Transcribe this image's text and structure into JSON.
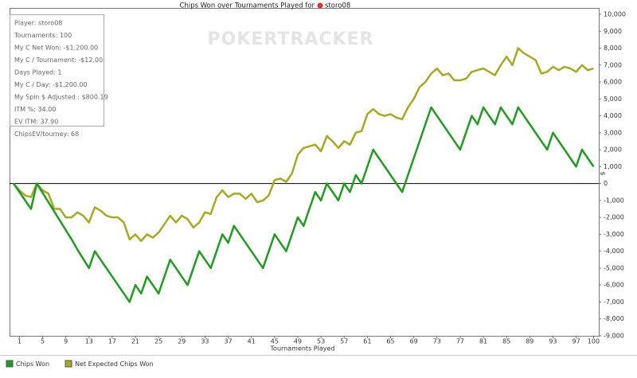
{
  "chart_data": {
    "type": "line",
    "title": "Chips Won over Tournaments Played for",
    "player": "storo08",
    "watermark": "POKERTRACKER",
    "x_label": "Tournaments Played",
    "y_label": "$",
    "info_box": [
      "Player: storo08",
      "Tournaments: 100",
      "My C Net Won: -$1,200.00",
      "My C / Tournament: -$12.00",
      "Days Played: 1",
      "My C / Day: -$1,200.00",
      "My Spin $ Adjusted : $800.19",
      "ITM %: 34.00",
      "EV ITM: 37.90",
      "ChipsEV/tourney: 68"
    ],
    "x": [
      0,
      1,
      2,
      3,
      4,
      5,
      6,
      7,
      8,
      9,
      10,
      11,
      12,
      13,
      14,
      15,
      16,
      17,
      18,
      19,
      20,
      21,
      22,
      23,
      24,
      25,
      26,
      27,
      28,
      29,
      30,
      31,
      32,
      33,
      34,
      35,
      36,
      37,
      38,
      39,
      40,
      41,
      42,
      43,
      44,
      45,
      46,
      47,
      48,
      49,
      50,
      51,
      52,
      53,
      54,
      55,
      56,
      57,
      58,
      59,
      60,
      61,
      62,
      63,
      64,
      65,
      66,
      67,
      68,
      69,
      70,
      71,
      72,
      73,
      74,
      75,
      76,
      77,
      78,
      79,
      80,
      81,
      82,
      83,
      84,
      85,
      86,
      87,
      88,
      89,
      90,
      91,
      92,
      93,
      94,
      95,
      96,
      97,
      98,
      99,
      100
    ],
    "xlim": [
      -0.7,
      100.9
    ],
    "xticks": [
      1,
      5,
      9,
      13,
      17,
      21,
      25,
      29,
      33,
      37,
      41,
      45,
      49,
      53,
      57,
      61,
      65,
      69,
      73,
      77,
      81,
      85,
      89,
      93,
      97,
      100
    ],
    "ylim": [
      -9000,
      10000
    ],
    "yticks": [
      {
        "value": -9000,
        "label": "-9,000"
      },
      {
        "value": -8000,
        "label": "-8,000"
      },
      {
        "value": -7000,
        "label": "-7,000"
      },
      {
        "value": -6000,
        "label": "-6,000"
      },
      {
        "value": -5000,
        "label": "-5,000"
      },
      {
        "value": -4000,
        "label": "-4,000"
      },
      {
        "value": -3000,
        "label": "-3,000"
      },
      {
        "value": -2000,
        "label": "-2,000"
      },
      {
        "value": -1000,
        "label": "-1,000"
      },
      0,
      {
        "value": 1000,
        "label": "1,000"
      },
      {
        "value": 2000,
        "label": "2,000"
      },
      {
        "value": 3000,
        "label": "3,000"
      },
      {
        "value": 4000,
        "label": "4,000"
      },
      {
        "value": 5000,
        "label": "5,000"
      },
      {
        "value": 6000,
        "label": "6,000"
      },
      {
        "value": 7000,
        "label": "7,000"
      },
      {
        "value": 8000,
        "label": "8,000"
      },
      {
        "value": 9000,
        "label": "9,000"
      },
      {
        "value": 10000,
        "label": "10,000"
      }
    ],
    "series": [
      {
        "name": "Chips Won",
        "color": "#1e9e1e",
        "values": [
          0,
          -500,
          -1000,
          -1500,
          0,
          -550,
          -1100,
          -1650,
          -2200,
          -2750,
          -3300,
          -3900,
          -4450,
          -5000,
          -4000,
          -4500,
          -5000,
          -5500,
          -6000,
          -6500,
          -7000,
          -6000,
          -6500,
          -5500,
          -6000,
          -6500,
          -5500,
          -4500,
          -5000,
          -5500,
          -6000,
          -5000,
          -4000,
          -4500,
          -5000,
          -4000,
          -3000,
          -3500,
          -2500,
          -3000,
          -3500,
          -4000,
          -4500,
          -5000,
          -4000,
          -3000,
          -3500,
          -4000,
          -3000,
          -2000,
          -2500,
          -1500,
          -500,
          -1000,
          0,
          -500,
          -1000,
          0,
          -500,
          500,
          0,
          1000,
          2000,
          1500,
          1000,
          500,
          0,
          -500,
          500,
          1500,
          2500,
          3500,
          4500,
          4000,
          3500,
          3000,
          2500,
          2000,
          3000,
          4000,
          3500,
          4500,
          4000,
          3500,
          4500,
          4000,
          3500,
          4500,
          4000,
          3500,
          3000,
          2500,
          2000,
          3000,
          2500,
          2000,
          1500,
          1000,
          2000,
          1500,
          1000
        ]
      },
      {
        "name": "Net Expected Chips Won",
        "color": "#a9a91e",
        "values": [
          0,
          -400,
          -700,
          -800,
          0,
          -400,
          -600,
          -1500,
          -1500,
          -2000,
          -2000,
          -1700,
          -1900,
          -2300,
          -1400,
          -1600,
          -1900,
          -2000,
          -2000,
          -2300,
          -3300,
          -3000,
          -3400,
          -3000,
          -3200,
          -2900,
          -2400,
          -1900,
          -2300,
          -1900,
          -2100,
          -2600,
          -2300,
          -1700,
          -1800,
          -800,
          -400,
          -800,
          -600,
          -600,
          -900,
          -600,
          -1100,
          -1000,
          -700,
          200,
          300,
          100,
          600,
          1700,
          2100,
          2200,
          2300,
          1900,
          2800,
          2500,
          2100,
          2500,
          2300,
          3000,
          3100,
          4100,
          4400,
          4100,
          4000,
          4100,
          3900,
          3800,
          4500,
          5000,
          5700,
          6000,
          6500,
          6800,
          6400,
          6500,
          6100,
          6100,
          6200,
          6600,
          6700,
          6800,
          6600,
          6400,
          7000,
          7500,
          7000,
          8000,
          7700,
          7500,
          7300,
          6500,
          6600,
          6900,
          6700,
          6900,
          6800,
          6600,
          7000,
          6700,
          6800
        ]
      }
    ]
  }
}
